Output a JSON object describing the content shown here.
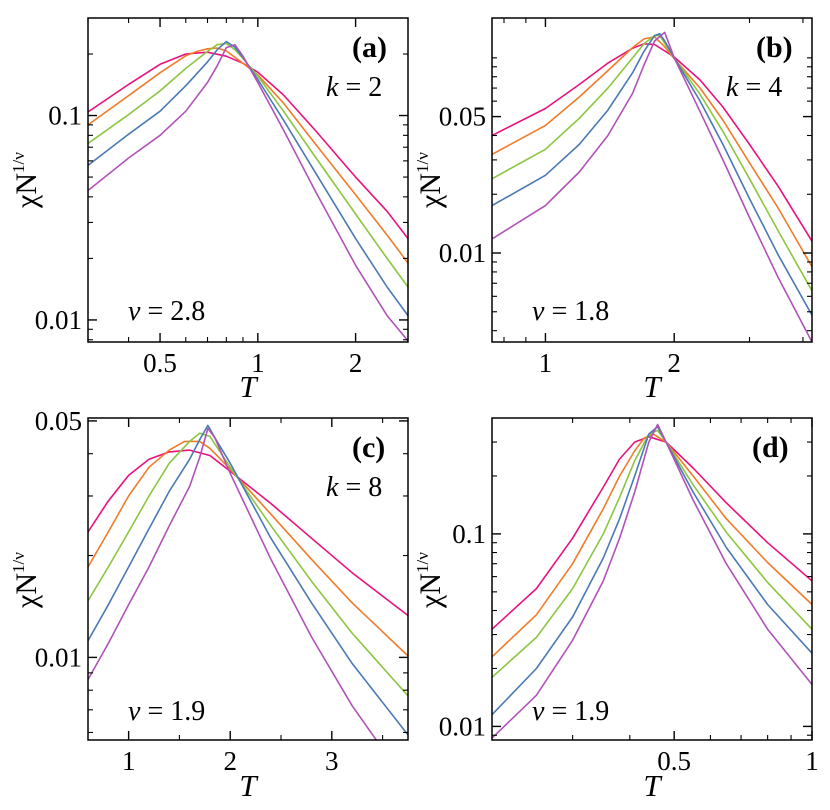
{
  "colors": {
    "magenta": "#e8127f",
    "orange": "#f07c2a",
    "green": "#8cc63f",
    "blue": "#4a79b5",
    "purple": "#b152b8",
    "frame": "#000000"
  },
  "chart_data": [
    {
      "panel": "(a)",
      "type": "line",
      "xlabel": "T",
      "ylabel": "χN",
      "ylabel_sup": "1/ν",
      "xscale": "log",
      "yscale": "log",
      "xlim": [
        0.3,
        2.9
      ],
      "ylim": [
        0.0078,
        0.3
      ],
      "xticks": [
        0.5,
        1,
        2
      ],
      "xtick_labels": [
        "0.5",
        "1",
        "2"
      ],
      "yticks": [
        0.01,
        0.1
      ],
      "ytick_labels": [
        "0.01",
        "0.1"
      ],
      "annotations": {
        "k_label": "k",
        "k_eq": " = 2",
        "nu_label": "ν",
        "nu_eq": " = 2.8"
      },
      "series": [
        {
          "color": "#e8127f",
          "x": [
            0.3,
            0.4,
            0.5,
            0.6,
            0.7,
            0.8,
            0.9,
            1.0,
            1.2,
            1.5,
            2.0,
            2.5,
            2.9
          ],
          "y": [
            0.104,
            0.142,
            0.178,
            0.2,
            0.204,
            0.195,
            0.18,
            0.163,
            0.126,
            0.085,
            0.05,
            0.034,
            0.025
          ]
        },
        {
          "color": "#f07c2a",
          "x": [
            0.3,
            0.4,
            0.5,
            0.6,
            0.65,
            0.7,
            0.75,
            0.8,
            0.9,
            1.0,
            1.2,
            1.5,
            2.0,
            2.5,
            2.9
          ],
          "y": [
            0.09,
            0.125,
            0.162,
            0.196,
            0.206,
            0.212,
            0.214,
            0.207,
            0.18,
            0.158,
            0.115,
            0.073,
            0.041,
            0.026,
            0.019
          ]
        },
        {
          "color": "#8cc63f",
          "x": [
            0.3,
            0.4,
            0.5,
            0.6,
            0.7,
            0.75,
            0.8,
            0.85,
            0.9,
            1.0,
            1.2,
            1.5,
            2.0,
            2.5,
            2.9
          ],
          "y": [
            0.073,
            0.101,
            0.132,
            0.17,
            0.206,
            0.222,
            0.225,
            0.21,
            0.19,
            0.156,
            0.105,
            0.063,
            0.033,
            0.02,
            0.0145
          ]
        },
        {
          "color": "#4a79b5",
          "x": [
            0.3,
            0.4,
            0.5,
            0.6,
            0.7,
            0.75,
            0.8,
            0.85,
            0.9,
            1.0,
            1.2,
            1.5,
            2.0,
            2.5,
            2.9
          ],
          "y": [
            0.057,
            0.081,
            0.105,
            0.14,
            0.183,
            0.21,
            0.23,
            0.216,
            0.192,
            0.15,
            0.095,
            0.053,
            0.025,
            0.0145,
            0.0105
          ]
        },
        {
          "color": "#b152b8",
          "x": [
            0.3,
            0.4,
            0.5,
            0.6,
            0.7,
            0.75,
            0.8,
            0.85,
            0.9,
            1.0,
            1.2,
            1.5,
            2.0,
            2.5,
            2.9
          ],
          "y": [
            0.043,
            0.062,
            0.08,
            0.105,
            0.145,
            0.175,
            0.215,
            0.222,
            0.195,
            0.145,
            0.085,
            0.043,
            0.0185,
            0.0105,
            0.0079
          ]
        }
      ]
    },
    {
      "panel": "(b)",
      "type": "line",
      "xlabel": "T",
      "ylabel": "χN",
      "ylabel_sup": "1/ν",
      "xscale": "log",
      "yscale": "log",
      "xlim": [
        0.75,
        4.2
      ],
      "ylim": [
        0.0035,
        0.16
      ],
      "xticks": [
        1,
        2
      ],
      "xtick_labels": [
        "1",
        "2"
      ],
      "yticks": [
        0.01,
        0.05
      ],
      "ytick_labels": [
        "0.01",
        "0.05"
      ],
      "annotations": {
        "k_label": "k",
        "k_eq": " = 4",
        "nu_label": "ν",
        "nu_eq": " = 1.8"
      },
      "series": [
        {
          "color": "#e8127f",
          "x": [
            0.75,
            1.0,
            1.2,
            1.4,
            1.6,
            1.7,
            1.8,
            2.0,
            2.3,
            2.6,
            3.0,
            3.5,
            4.2
          ],
          "y": [
            0.04,
            0.055,
            0.073,
            0.094,
            0.112,
            0.118,
            0.117,
            0.101,
            0.077,
            0.056,
            0.036,
            0.022,
            0.0115
          ]
        },
        {
          "color": "#f07c2a",
          "x": [
            0.75,
            1.0,
            1.2,
            1.4,
            1.6,
            1.7,
            1.8,
            1.9,
            2.0,
            2.3,
            2.6,
            3.0,
            3.5,
            4.2
          ],
          "y": [
            0.032,
            0.045,
            0.063,
            0.086,
            0.113,
            0.125,
            0.128,
            0.114,
            0.099,
            0.07,
            0.048,
            0.029,
            0.017,
            0.0085
          ]
        },
        {
          "color": "#8cc63f",
          "x": [
            0.75,
            1.0,
            1.2,
            1.4,
            1.6,
            1.7,
            1.8,
            1.85,
            2.0,
            2.3,
            2.6,
            3.0,
            3.5,
            4.2
          ],
          "y": [
            0.024,
            0.034,
            0.049,
            0.07,
            0.1,
            0.118,
            0.13,
            0.13,
            0.1,
            0.065,
            0.042,
            0.024,
            0.013,
            0.0064
          ]
        },
        {
          "color": "#4a79b5",
          "x": [
            0.75,
            1.0,
            1.2,
            1.4,
            1.6,
            1.7,
            1.8,
            1.85,
            1.9,
            2.0,
            2.3,
            2.6,
            3.0,
            3.5,
            4.2
          ],
          "y": [
            0.0175,
            0.025,
            0.036,
            0.054,
            0.084,
            0.108,
            0.13,
            0.133,
            0.122,
            0.1,
            0.06,
            0.036,
            0.019,
            0.0098,
            0.0048
          ]
        },
        {
          "color": "#b152b8",
          "x": [
            0.75,
            1.0,
            1.2,
            1.4,
            1.6,
            1.7,
            1.8,
            1.9,
            2.0,
            2.3,
            2.6,
            3.0,
            3.5,
            4.2
          ],
          "y": [
            0.0118,
            0.0175,
            0.026,
            0.04,
            0.066,
            0.092,
            0.122,
            0.135,
            0.1,
            0.053,
            0.03,
            0.0152,
            0.0075,
            0.0035
          ]
        }
      ]
    },
    {
      "panel": "(c)",
      "type": "line",
      "xlabel": "T",
      "ylabel": "χN",
      "ylabel_sup": "1/ν",
      "xscale": "linear",
      "yscale": "log",
      "xlim": [
        0.6,
        3.75
      ],
      "ylim": [
        0.0057,
        0.051
      ],
      "xticks": [
        1,
        2,
        3
      ],
      "xtick_labels": [
        "1",
        "2",
        "3"
      ],
      "yticks": [
        0.01,
        0.05
      ],
      "ytick_labels": [
        "0.01",
        "0.05"
      ],
      "annotations": {
        "k_label": "k",
        "k_eq": " = 8",
        "nu_label": "ν",
        "nu_eq": " = 1.9"
      },
      "series": [
        {
          "color": "#e8127f",
          "x": [
            0.6,
            0.8,
            1.0,
            1.2,
            1.4,
            1.6,
            1.8,
            2.0,
            2.4,
            2.8,
            3.2,
            3.75
          ],
          "y": [
            0.0235,
            0.029,
            0.0345,
            0.0385,
            0.0405,
            0.041,
            0.0395,
            0.0355,
            0.0285,
            0.0225,
            0.0178,
            0.0133
          ]
        },
        {
          "color": "#f07c2a",
          "x": [
            0.6,
            0.8,
            1.0,
            1.2,
            1.4,
            1.55,
            1.7,
            1.8,
            2.0,
            2.4,
            2.8,
            3.2,
            3.75
          ],
          "y": [
            0.0185,
            0.0235,
            0.03,
            0.0365,
            0.041,
            0.0435,
            0.0435,
            0.0415,
            0.036,
            0.0265,
            0.0195,
            0.0145,
            0.0101
          ]
        },
        {
          "color": "#8cc63f",
          "x": [
            0.6,
            0.8,
            1.0,
            1.2,
            1.4,
            1.6,
            1.7,
            1.8,
            2.0,
            2.4,
            2.8,
            3.2,
            3.75
          ],
          "y": [
            0.0147,
            0.0185,
            0.0235,
            0.03,
            0.0375,
            0.0435,
            0.046,
            0.045,
            0.0365,
            0.0245,
            0.0168,
            0.0118,
            0.0077
          ]
        },
        {
          "color": "#4a79b5",
          "x": [
            0.6,
            0.8,
            1.0,
            1.2,
            1.4,
            1.6,
            1.7,
            1.78,
            1.85,
            2.0,
            2.4,
            2.8,
            3.2,
            3.75
          ],
          "y": [
            0.0112,
            0.0143,
            0.0185,
            0.024,
            0.031,
            0.0385,
            0.044,
            0.0485,
            0.0445,
            0.0375,
            0.0225,
            0.0145,
            0.0096,
            0.0059
          ]
        },
        {
          "color": "#b152b8",
          "x": [
            0.6,
            0.8,
            1.0,
            1.2,
            1.4,
            1.6,
            1.7,
            1.78,
            1.85,
            2.0,
            2.4,
            2.8,
            3.2,
            3.75
          ],
          "y": [
            0.0086,
            0.011,
            0.0143,
            0.0185,
            0.0245,
            0.032,
            0.039,
            0.0475,
            0.0445,
            0.035,
            0.0195,
            0.0115,
            0.0072,
            0.0042
          ]
        }
      ]
    },
    {
      "panel": "(d)",
      "type": "line",
      "xlabel": "T",
      "ylabel": "χN",
      "ylabel_sup": "1/ν",
      "xscale": "log",
      "yscale": "log",
      "xlim": [
        0.2,
        1.0
      ],
      "ylim": [
        0.0085,
        0.4
      ],
      "xticks": [
        0.5,
        1
      ],
      "xtick_labels": [
        "0.5",
        "1"
      ],
      "yticks": [
        0.01,
        0.1
      ],
      "ytick_labels": [
        "0.01",
        "0.1"
      ],
      "annotations": {
        "nu_label": "ν",
        "nu_eq": " = 1.9"
      },
      "series": [
        {
          "color": "#e8127f",
          "x": [
            0.2,
            0.25,
            0.3,
            0.35,
            0.38,
            0.41,
            0.44,
            0.48,
            0.55,
            0.65,
            0.8,
            1.0
          ],
          "y": [
            0.032,
            0.052,
            0.095,
            0.175,
            0.245,
            0.3,
            0.32,
            0.3,
            0.22,
            0.145,
            0.09,
            0.057
          ]
        },
        {
          "color": "#f07c2a",
          "x": [
            0.2,
            0.25,
            0.3,
            0.35,
            0.38,
            0.41,
            0.43,
            0.45,
            0.48,
            0.55,
            0.65,
            0.8,
            1.0
          ],
          "y": [
            0.023,
            0.038,
            0.07,
            0.135,
            0.2,
            0.27,
            0.315,
            0.33,
            0.3,
            0.2,
            0.12,
            0.071,
            0.043
          ]
        },
        {
          "color": "#8cc63f",
          "x": [
            0.2,
            0.25,
            0.3,
            0.35,
            0.38,
            0.41,
            0.44,
            0.46,
            0.48,
            0.55,
            0.65,
            0.8,
            1.0
          ],
          "y": [
            0.018,
            0.029,
            0.052,
            0.1,
            0.155,
            0.24,
            0.33,
            0.345,
            0.3,
            0.18,
            0.102,
            0.056,
            0.032
          ]
        },
        {
          "color": "#4a79b5",
          "x": [
            0.2,
            0.25,
            0.3,
            0.35,
            0.38,
            0.41,
            0.44,
            0.46,
            0.48,
            0.55,
            0.65,
            0.8,
            1.0
          ],
          "y": [
            0.0115,
            0.02,
            0.037,
            0.075,
            0.12,
            0.2,
            0.33,
            0.36,
            0.3,
            0.165,
            0.085,
            0.043,
            0.024
          ]
        },
        {
          "color": "#b152b8",
          "x": [
            0.2,
            0.25,
            0.3,
            0.35,
            0.38,
            0.41,
            0.44,
            0.46,
            0.48,
            0.55,
            0.65,
            0.8,
            1.0
          ],
          "y": [
            0.0087,
            0.0145,
            0.028,
            0.057,
            0.095,
            0.165,
            0.3,
            0.37,
            0.3,
            0.15,
            0.07,
            0.032,
            0.0165
          ]
        }
      ]
    }
  ]
}
